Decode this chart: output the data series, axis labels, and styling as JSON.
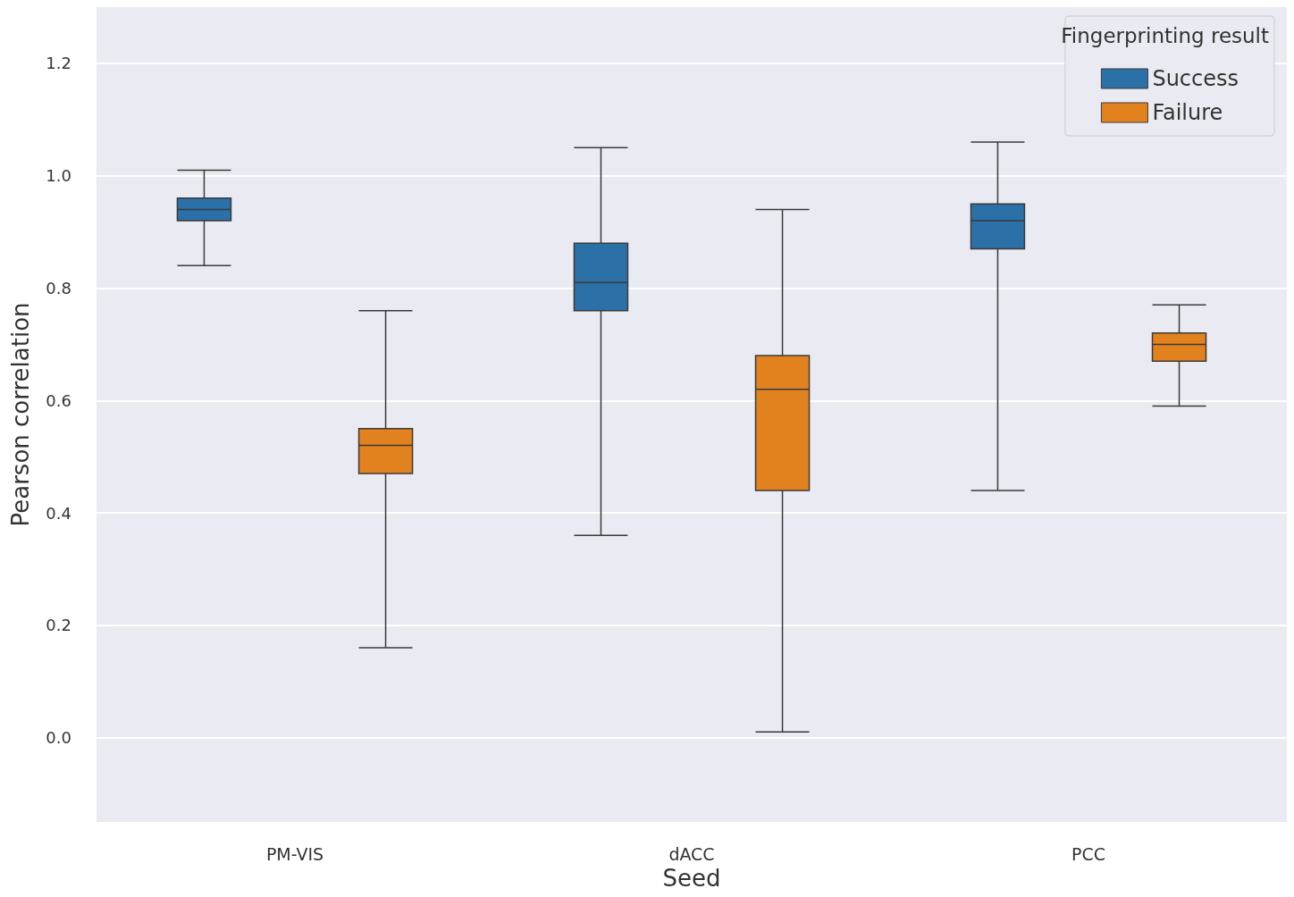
{
  "chart_data": {
    "type": "box",
    "xlabel": "Seed",
    "ylabel": "Pearson correlation",
    "legend_title": "Fingerprinting result",
    "categories": [
      "PM-VIS",
      "dACC",
      "PCC"
    ],
    "series": [
      {
        "name": "Success",
        "color": "#2b70a7",
        "boxes": [
          {
            "low": 0.84,
            "q1": 0.92,
            "median": 0.94,
            "q3": 0.96,
            "high": 1.01
          },
          {
            "low": 0.36,
            "q1": 0.76,
            "median": 0.81,
            "q3": 0.88,
            "high": 1.05
          },
          {
            "low": 0.44,
            "q1": 0.87,
            "median": 0.92,
            "q3": 0.95,
            "high": 1.06
          }
        ]
      },
      {
        "name": "Failure",
        "color": "#e2821f",
        "boxes": [
          {
            "low": 0.16,
            "q1": 0.47,
            "median": 0.52,
            "q3": 0.55,
            "high": 0.76
          },
          {
            "low": 0.01,
            "q1": 0.44,
            "median": 0.62,
            "q3": 0.68,
            "high": 0.94
          },
          {
            "low": 0.59,
            "q1": 0.67,
            "median": 0.7,
            "q3": 0.72,
            "high": 0.77
          }
        ]
      }
    ],
    "ylim": [
      -0.15,
      1.3
    ],
    "yticks": [
      {
        "value": 0,
        "label": "0.0"
      },
      {
        "value": 0.2,
        "label": "0.2"
      },
      {
        "value": 0.4,
        "label": "0.4"
      },
      {
        "value": 0.6,
        "label": "0.6"
      },
      {
        "value": 0.8,
        "label": "0.8"
      },
      {
        "value": 1,
        "label": "1.0"
      },
      {
        "value": 1.2,
        "label": "1.2"
      }
    ],
    "grid": "y",
    "legend": "top right"
  }
}
